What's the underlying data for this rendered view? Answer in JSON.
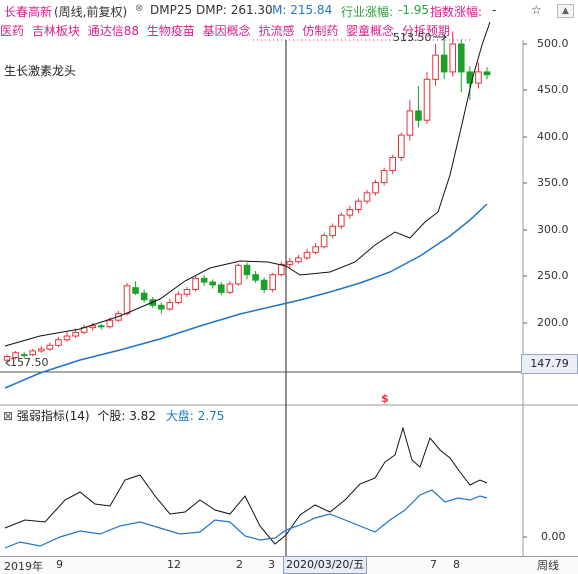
{
  "header": {
    "stock": "长春高新",
    "mode": "(周线,前复权)",
    "ma_name": "DMP25",
    "dmp_label": "DMP: 261.30",
    "m_label": "M: 215.84",
    "industry_label": "行业涨幅:",
    "industry_value": "-1.95",
    "index_label": "指数涨幅:",
    "index_value": "-",
    "fav": "☆",
    "up": "▲"
  },
  "tags": [
    "医药",
    "吉林板块",
    "通达信88",
    "生物疫苗",
    "基因概念",
    "抗流感",
    "仿制药",
    "婴童概念",
    "分拆预期"
  ],
  "plate_label": "生长激素龙头",
  "price_axis": [
    "500.0",
    "450.0",
    "400.0",
    "350.0",
    "300.0",
    "250.0",
    "200.0"
  ],
  "current_price": "147.79",
  "annotations": {
    "high": "513.50",
    "low": "157.50",
    "s_marker": "$"
  },
  "indicator": {
    "name": "强弱指标(14)",
    "stock_label": "个股:",
    "stock_value": "3.82",
    "market_label": "大盘:",
    "market_value": "2.75",
    "axis_zero": "0.00"
  },
  "time_axis": {
    "labels": [
      "2019年",
      "9",
      "12",
      "2",
      "3",
      "7",
      "8"
    ],
    "cursor_date": "2020/03/20/五",
    "period": "周线"
  },
  "colors": {
    "up": "#e8323c",
    "down": "#1aa12a",
    "ma_black": "#111111",
    "ma_blue": "#1e76c8",
    "tag": "#d81e8a",
    "market": "#1e76c8"
  }
}
